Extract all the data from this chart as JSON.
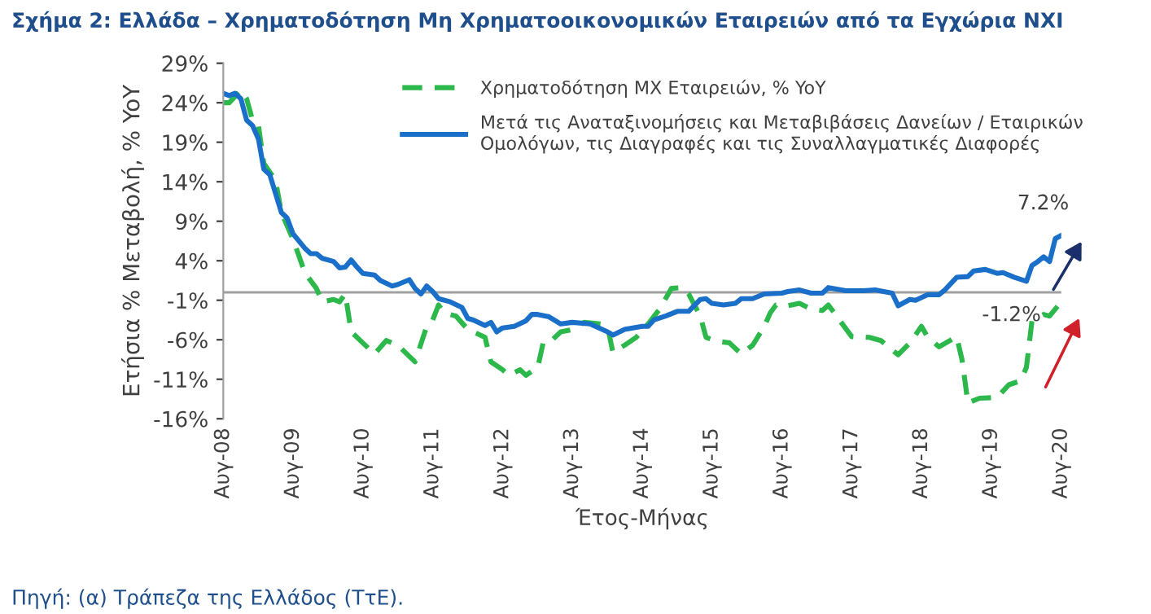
{
  "chart_data": {
    "type": "line",
    "title": "Σχήμα 2: Ελλάδα – Χρηματοδότηση Μη Χρηματοοικονομικών Εταιρειών από τα Εγχώρια ΝΧΙ",
    "xlabel": "Έτος-Μήνας",
    "ylabel": "Ετήσια % Μεταβολή, % YoY",
    "series": [
      {
        "name": "Χρηματοδότηση ΜΧ Εταιρειών, % YoY",
        "color": "#2cb84a",
        "line_style": "dashed",
        "x": [
          "2008-08",
          "2008-09",
          "2008-11",
          "2008-12",
          "2009-01",
          "2009-02",
          "2009-03",
          "2009-05",
          "2009-06",
          "2009-08",
          "2009-09",
          "2009-10",
          "2009-12",
          "2010-01",
          "2010-03",
          "2010-04",
          "2010-05",
          "2010-06",
          "2010-08",
          "2010-10",
          "2010-12",
          "2011-02",
          "2011-04",
          "2011-05",
          "2011-07",
          "2011-08",
          "2011-09",
          "2011-10",
          "2011-12",
          "2012-02",
          "2012-03",
          "2012-05",
          "2012-06",
          "2012-08",
          "2012-09",
          "2012-11",
          "2012-12",
          "2013-02",
          "2013-03",
          "2013-04",
          "2013-06",
          "2013-08",
          "2013-10",
          "2014-01",
          "2014-02",
          "2014-03",
          "2014-05",
          "2014-07",
          "2014-09",
          "2014-11",
          "2015-01",
          "2015-03",
          "2015-04",
          "2015-06",
          "2015-07",
          "2015-09",
          "2015-11",
          "2016-01",
          "2016-03",
          "2016-05",
          "2016-06",
          "2016-07",
          "2016-09",
          "2016-11",
          "2017-01",
          "2017-03",
          "2017-04",
          "2017-06",
          "2017-08",
          "2017-11",
          "2018-01",
          "2018-04",
          "2018-06",
          "2018-08",
          "2018-09",
          "2018-11",
          "2019-02",
          "2019-03",
          "2019-04",
          "2019-06",
          "2019-09",
          "2019-11",
          "2020-01",
          "2020-02",
          "2020-03",
          "2020-05",
          "2020-06",
          "2020-08"
        ],
        "values": [
          24.0,
          24.0,
          25.6,
          24.5,
          21.8,
          21.1,
          16.3,
          14.2,
          10.1,
          6.7,
          4.6,
          2.5,
          0.5,
          -1.2,
          -0.9,
          -1.2,
          -0.2,
          -5.0,
          -6.4,
          -7.8,
          -6.1,
          -6.7,
          -8.1,
          -8.8,
          -4.3,
          -3.5,
          -1.6,
          -2.6,
          -3.0,
          -4.7,
          -5.0,
          -5.7,
          -8.8,
          -9.8,
          -10.5,
          -9.8,
          -10.5,
          -9.5,
          -6.4,
          -6.4,
          -5.0,
          -4.7,
          -3.8,
          -4.0,
          -4.3,
          -7.6,
          -6.7,
          -5.7,
          -4.0,
          -2.1,
          0.5,
          0.6,
          -0.2,
          -3.0,
          -5.7,
          -6.2,
          -6.4,
          -7.8,
          -6.7,
          -4.3,
          -2.6,
          -1.6,
          -1.7,
          -1.4,
          -2.1,
          -2.3,
          -1.6,
          -3.6,
          -5.6,
          -5.7,
          -6.1,
          -7.9,
          -6.4,
          -4.3,
          -5.6,
          -6.9,
          -5.6,
          -8.5,
          -14.0,
          -13.4,
          -13.3,
          -11.7,
          -11.2,
          -9.5,
          -3.6,
          -2.8,
          -3.0,
          -1.2
        ]
      },
      {
        "name": "Μετά τις Αναταξινομήσεις και Μεταβιβάσεις Δανείων / Εταιρικών\nΟμολόγων, τις Διαγραφές και τις Συναλλαγματικές Διαφορές",
        "color": "#1a6fc9",
        "line_style": "solid",
        "x": [
          "2008-08",
          "2008-09",
          "2008-10",
          "2008-11",
          "2008-12",
          "2009-01",
          "2009-02",
          "2009-03",
          "2009-04",
          "2009-06",
          "2009-07",
          "2009-08",
          "2009-10",
          "2009-11",
          "2009-12",
          "2010-01",
          "2010-03",
          "2010-04",
          "2010-05",
          "2010-06",
          "2010-07",
          "2010-08",
          "2010-10",
          "2010-11",
          "2011-01",
          "2011-02",
          "2011-04",
          "2011-05",
          "2011-06",
          "2011-07",
          "2011-08",
          "2011-09",
          "2011-11",
          "2012-01",
          "2012-02",
          "2012-03",
          "2012-05",
          "2012-06",
          "2012-07",
          "2012-08",
          "2012-10",
          "2012-12",
          "2013-01",
          "2013-02",
          "2013-04",
          "2013-06",
          "2013-08",
          "2013-11",
          "2014-02",
          "2014-03",
          "2014-05",
          "2014-08",
          "2014-09",
          "2014-10",
          "2014-12",
          "2015-02",
          "2015-04",
          "2015-06",
          "2015-07",
          "2015-08",
          "2015-10",
          "2015-12",
          "2016-01",
          "2016-03",
          "2016-05",
          "2016-08",
          "2016-09",
          "2016-11",
          "2017-01",
          "2017-03",
          "2017-04",
          "2017-07",
          "2017-10",
          "2017-12",
          "2018-03",
          "2018-04",
          "2018-06",
          "2018-07",
          "2018-09",
          "2018-11",
          "2018-12",
          "2019-02",
          "2019-04",
          "2019-05",
          "2019-07",
          "2019-09",
          "2019-10",
          "2019-12",
          "2020-02",
          "2020-03",
          "2020-04",
          "2020-05",
          "2020-06",
          "2020-07",
          "2020-08"
        ],
        "values": [
          25.2,
          24.9,
          25.2,
          24.5,
          21.8,
          21.1,
          19.4,
          15.6,
          14.9,
          10.1,
          9.4,
          7.4,
          5.6,
          4.9,
          4.9,
          4.3,
          3.9,
          3.1,
          3.2,
          4.1,
          3.2,
          2.4,
          2.2,
          1.5,
          0.8,
          1.0,
          1.6,
          0.5,
          -0.2,
          0.8,
          0.1,
          -0.8,
          -1.2,
          -1.9,
          -3.3,
          -3.5,
          -4.2,
          -3.8,
          -5.0,
          -4.5,
          -4.3,
          -3.6,
          -2.8,
          -2.8,
          -3.1,
          -4.0,
          -3.8,
          -4.0,
          -5.0,
          -5.4,
          -4.7,
          -4.3,
          -4.3,
          -3.5,
          -3.0,
          -2.4,
          -2.4,
          -0.9,
          -0.8,
          -1.4,
          -1.6,
          -1.4,
          -0.8,
          -0.8,
          -0.2,
          -0.1,
          0.1,
          0.3,
          -0.1,
          -0.1,
          0.6,
          0.2,
          0.2,
          0.3,
          -0.1,
          -1.7,
          -0.9,
          -1.0,
          -0.3,
          -0.3,
          0.3,
          1.9,
          2.0,
          2.7,
          2.9,
          2.4,
          2.5,
          1.9,
          1.4,
          3.4,
          3.9,
          4.5,
          3.9,
          6.8,
          7.2
        ]
      }
    ],
    "xlim": [
      "2008-08",
      "2020-08"
    ],
    "xticks": [
      {
        "value": "2008-08",
        "label": "Αυγ-08"
      },
      {
        "value": "2009-08",
        "label": "Αυγ-09"
      },
      {
        "value": "2010-08",
        "label": "Αυγ-10"
      },
      {
        "value": "2011-08",
        "label": "Αυγ-11"
      },
      {
        "value": "2012-08",
        "label": "Αυγ-12"
      },
      {
        "value": "2013-08",
        "label": "Αυγ-13"
      },
      {
        "value": "2014-08",
        "label": "Αυγ-14"
      },
      {
        "value": "2015-08",
        "label": "Αυγ-15"
      },
      {
        "value": "2016-08",
        "label": "Αυγ-16"
      },
      {
        "value": "2017-08",
        "label": "Αυγ-17"
      },
      {
        "value": "2018-08",
        "label": "Αυγ-18"
      },
      {
        "value": "2019-08",
        "label": "Αυγ-19"
      },
      {
        "value": "2020-08",
        "label": "Αυγ-20"
      }
    ],
    "ylim": [
      -16,
      29
    ],
    "yticks": [
      {
        "value": 29,
        "label": "29%"
      },
      {
        "value": 24,
        "label": "24%"
      },
      {
        "value": 19,
        "label": "19%"
      },
      {
        "value": 14,
        "label": "14%"
      },
      {
        "value": 9,
        "label": "9%"
      },
      {
        "value": 4,
        "label": "4%"
      },
      {
        "value": -1,
        "label": "-1%"
      },
      {
        "value": -6,
        "label": "-6%"
      },
      {
        "value": -11,
        "label": "-11%"
      },
      {
        "value": -16,
        "label": "-16%"
      }
    ],
    "ref_lines": [
      {
        "axis": "y",
        "value": 0,
        "color": "#a0a0a0"
      }
    ],
    "annotations": [
      {
        "text": "7.2%",
        "x": "2020-08",
        "y": 7.2
      },
      {
        "text": "-1.2%",
        "x": "2020-08",
        "y": -1.2
      },
      "Πηγή: (α) Τράπεζα της Ελλάδος (ΤτΕ)."
    ],
    "grid": false,
    "legend": "top",
    "marker": "none"
  }
}
